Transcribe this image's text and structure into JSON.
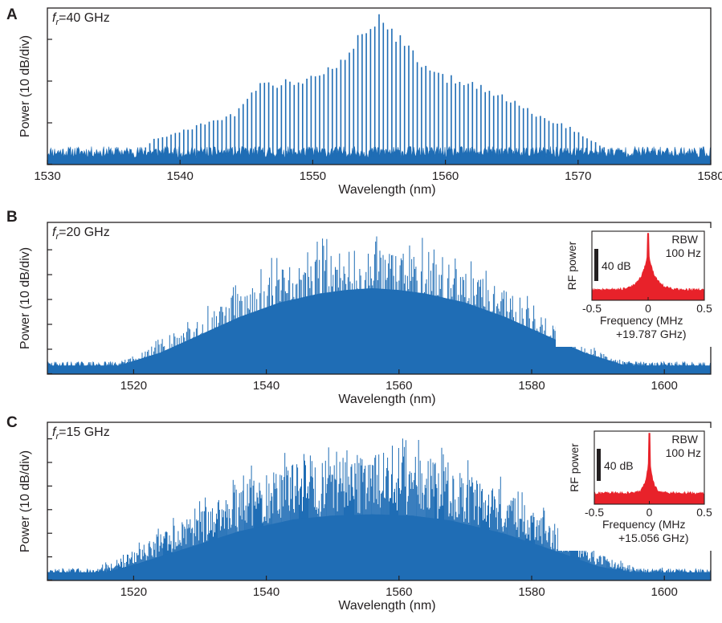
{
  "colors": {
    "spectrum": "#1f6db5",
    "rf": "#e8222a",
    "axis": "#231f20",
    "background": "#ffffff"
  },
  "chart_data": [
    {
      "panel": "A",
      "type": "line",
      "rep_rate": {
        "symbol": "f",
        "subscript": "r",
        "value_text": "=40 GHz"
      },
      "xlabel": "Wavelength (nm)",
      "ylabel": "Power (10 dB/div)",
      "xlim": [
        1530,
        1580
      ],
      "xticks": [
        1530,
        1540,
        1550,
        1560,
        1570,
        1580
      ],
      "ylim_div": [
        0,
        3.75
      ],
      "y_div_ticks": [
        1,
        2,
        3
      ],
      "comb": {
        "spacing_nm": 0.32,
        "center_nm": 1555.0,
        "noise_floor_div": 0.3,
        "peak_max_div": 3.6,
        "envelope": [
          [
            1537,
            0.3
          ],
          [
            1538,
            0.6
          ],
          [
            1541,
            0.9
          ],
          [
            1544,
            1.2
          ],
          [
            1546,
            1.9
          ],
          [
            1548,
            2.0
          ],
          [
            1550,
            2.1
          ],
          [
            1552,
            2.5
          ],
          [
            1555,
            3.6
          ],
          [
            1558,
            2.5
          ],
          [
            1560,
            2.1
          ],
          [
            1562,
            2.0
          ],
          [
            1564,
            1.7
          ],
          [
            1567,
            1.2
          ],
          [
            1570,
            0.8
          ],
          [
            1572,
            0.4
          ],
          [
            1574,
            0.3
          ]
        ]
      }
    },
    {
      "panel": "B",
      "type": "line",
      "rep_rate": {
        "symbol": "f",
        "subscript": "r",
        "value_text": "=20 GHz"
      },
      "xlabel": "Wavelength (nm)",
      "ylabel": "Power (10 dB/div)",
      "xlim": [
        1507,
        1607
      ],
      "xticks": [
        1520,
        1540,
        1560,
        1580,
        1600
      ],
      "ylim_div": [
        0,
        6.1
      ],
      "y_div_ticks": [
        1,
        2,
        3,
        4,
        5
      ],
      "comb": {
        "spacing_nm": 0.16,
        "center_nm": 1556.0,
        "noise_floor_div": 0.35,
        "peak_max_div": 5.6,
        "envelope": [
          [
            1507,
            0.35
          ],
          [
            1517,
            0.4
          ],
          [
            1524,
            1.2
          ],
          [
            1530,
            2.2
          ],
          [
            1536,
            3.2
          ],
          [
            1542,
            4.0
          ],
          [
            1548,
            4.5
          ],
          [
            1552,
            4.7
          ],
          [
            1556,
            4.8
          ],
          [
            1560,
            4.7
          ],
          [
            1564,
            4.5
          ],
          [
            1570,
            4.0
          ],
          [
            1576,
            3.2
          ],
          [
            1582,
            2.2
          ],
          [
            1588,
            1.2
          ],
          [
            1594,
            0.5
          ],
          [
            1607,
            0.35
          ]
        ]
      },
      "inset": {
        "title": "RBW",
        "subtitle": "100 Hz",
        "xlabel": "Frequency (MHz",
        "xlabel2": "+19.787 GHz)",
        "ylabel": "RF power",
        "scale_bar": "40 dB",
        "xlim": [
          -0.5,
          0.5
        ],
        "xticks": [
          "-0.5",
          "0",
          "0.5"
        ],
        "peak_x": 0.0
      }
    },
    {
      "panel": "C",
      "type": "line",
      "rep_rate": {
        "symbol": "f",
        "subscript": "r",
        "value_text": "=15 GHz"
      },
      "xlabel": "Wavelength (nm)",
      "ylabel": "Power (10 dB/div)",
      "xlim": [
        1507,
        1607
      ],
      "xticks": [
        1520,
        1540,
        1560,
        1580,
        1600
      ],
      "ylim_div": [
        0,
        6.7
      ],
      "y_div_ticks": [
        1,
        2,
        3,
        4,
        5,
        6
      ],
      "comb": {
        "spacing_nm": 0.12,
        "center_nm": 1556.0,
        "noise_floor_div": 0.35,
        "peak_max_div": 6.2,
        "envelope": [
          [
            1507,
            0.35
          ],
          [
            1514,
            0.4
          ],
          [
            1520,
            1.2
          ],
          [
            1528,
            2.5
          ],
          [
            1536,
            3.8
          ],
          [
            1544,
            4.7
          ],
          [
            1550,
            5.0
          ],
          [
            1556,
            5.1
          ],
          [
            1562,
            5.0
          ],
          [
            1568,
            4.6
          ],
          [
            1576,
            3.6
          ],
          [
            1584,
            2.2
          ],
          [
            1590,
            1.1
          ],
          [
            1596,
            0.5
          ],
          [
            1607,
            0.35
          ]
        ]
      },
      "inset": {
        "title": "RBW",
        "subtitle": "100 Hz",
        "xlabel": "Frequency (MHz",
        "xlabel2": "+15.056 GHz)",
        "ylabel": "RF power",
        "scale_bar": "40 dB",
        "xlim": [
          -0.5,
          0.5
        ],
        "xticks": [
          "-0.5",
          "0",
          "0.5"
        ],
        "peak_x": 0.0
      }
    }
  ]
}
